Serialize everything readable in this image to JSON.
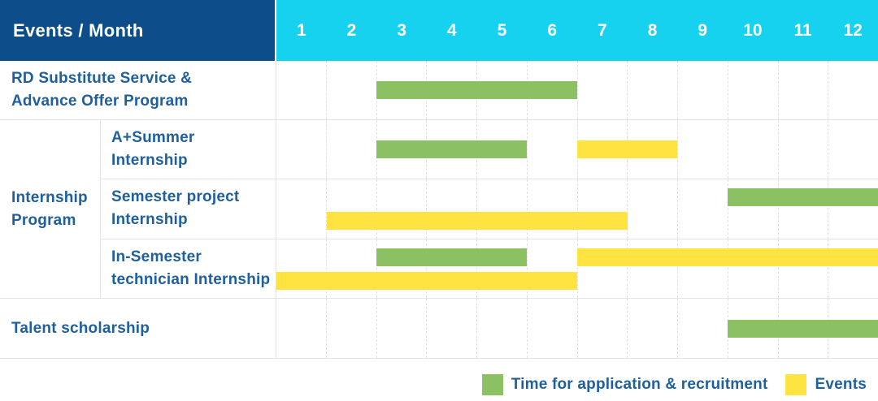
{
  "header": {
    "corner_label": "Events / Month",
    "months": [
      "1",
      "2",
      "3",
      "4",
      "5",
      "6",
      "7",
      "8",
      "9",
      "10",
      "11",
      "12"
    ]
  },
  "colors": {
    "header_bg": "#0d4d89",
    "months_bg": "#17d2ee",
    "header_text": "#ffffff",
    "green": "#8bc162",
    "yellow": "#ffe340",
    "label_text": "#1e5f9e",
    "grid_line": "#e4e4e4",
    "grid_dash": "#e0e0e0"
  },
  "sections": [
    {
      "type": "row",
      "name": "rd-substitute-service",
      "label_lines": [
        "RD Substitute Service &",
        "Advance Offer Program"
      ],
      "bars": [
        {
          "type": "application",
          "lane": "single",
          "start_month": 3,
          "end_month": 6
        }
      ]
    },
    {
      "type": "group",
      "name": "internship-program",
      "group_label_lines": [
        "Internship",
        "Program"
      ],
      "rows": [
        {
          "name": "a-plus-summer-internship",
          "label_lines": [
            "A+Summer",
            "Internship"
          ],
          "bars": [
            {
              "type": "application",
              "lane": "single",
              "start_month": 3,
              "end_month": 5
            },
            {
              "type": "events",
              "lane": "single",
              "start_month": 7,
              "end_month": 8
            }
          ]
        },
        {
          "name": "semester-project-internship",
          "label_lines": [
            "Semester project",
            "Internship"
          ],
          "bars": [
            {
              "type": "application",
              "lane": "top",
              "start_month": 10,
              "end_month": 12
            },
            {
              "type": "events",
              "lane": "bottom",
              "start_month": 2,
              "end_month": 7
            }
          ]
        },
        {
          "name": "in-semester-technician-internship",
          "label_lines": [
            "In-Semester",
            "technician Internship"
          ],
          "bars": [
            {
              "type": "application",
              "lane": "top",
              "start_month": 3,
              "end_month": 5
            },
            {
              "type": "events",
              "lane": "top",
              "start_month": 7,
              "end_month": 12
            },
            {
              "type": "events",
              "lane": "bottom",
              "start_month": 1,
              "end_month": 6
            }
          ]
        }
      ]
    },
    {
      "type": "row",
      "name": "talent-scholarship",
      "label_lines": [
        "Talent scholarship"
      ],
      "bars": [
        {
          "type": "application",
          "lane": "single",
          "start_month": 10,
          "end_month": 12
        }
      ]
    }
  ],
  "legend": {
    "items": [
      {
        "key": "application",
        "label": "Time for application & recruitment",
        "color": "#8bc162"
      },
      {
        "key": "events",
        "label": "Events",
        "color": "#ffe340"
      }
    ]
  },
  "chart_data": {
    "type": "gantt",
    "title": "Events / Month",
    "x_unit": "month",
    "x_range": [
      1,
      12
    ],
    "x_ticks": [
      "1",
      "2",
      "3",
      "4",
      "5",
      "6",
      "7",
      "8",
      "9",
      "10",
      "11",
      "12"
    ],
    "legend_position": "bottom-right",
    "legend": [
      {
        "key": "application",
        "label": "Time for application & recruitment",
        "color": "#8bc162"
      },
      {
        "key": "events",
        "label": "Events",
        "color": "#ffe340"
      }
    ],
    "tasks": [
      {
        "group": null,
        "name": "RD Substitute Service & Advance Offer Program",
        "bars": [
          {
            "category": "application",
            "start_month": 3,
            "end_month": 6
          }
        ]
      },
      {
        "group": "Internship Program",
        "name": "A+Summer Internship",
        "bars": [
          {
            "category": "application",
            "start_month": 3,
            "end_month": 5
          },
          {
            "category": "events",
            "start_month": 7,
            "end_month": 8
          }
        ]
      },
      {
        "group": "Internship Program",
        "name": "Semester project Internship",
        "bars": [
          {
            "category": "application",
            "start_month": 10,
            "end_month": 12
          },
          {
            "category": "events",
            "start_month": 2,
            "end_month": 7
          }
        ]
      },
      {
        "group": "Internship Program",
        "name": "In-Semester technician Internship",
        "bars": [
          {
            "category": "application",
            "start_month": 3,
            "end_month": 5
          },
          {
            "category": "events",
            "start_month": 7,
            "end_month": 12
          },
          {
            "category": "events",
            "start_month": 1,
            "end_month": 6
          }
        ]
      },
      {
        "group": null,
        "name": "Talent scholarship",
        "bars": [
          {
            "category": "application",
            "start_month": 10,
            "end_month": 12
          }
        ]
      }
    ]
  }
}
